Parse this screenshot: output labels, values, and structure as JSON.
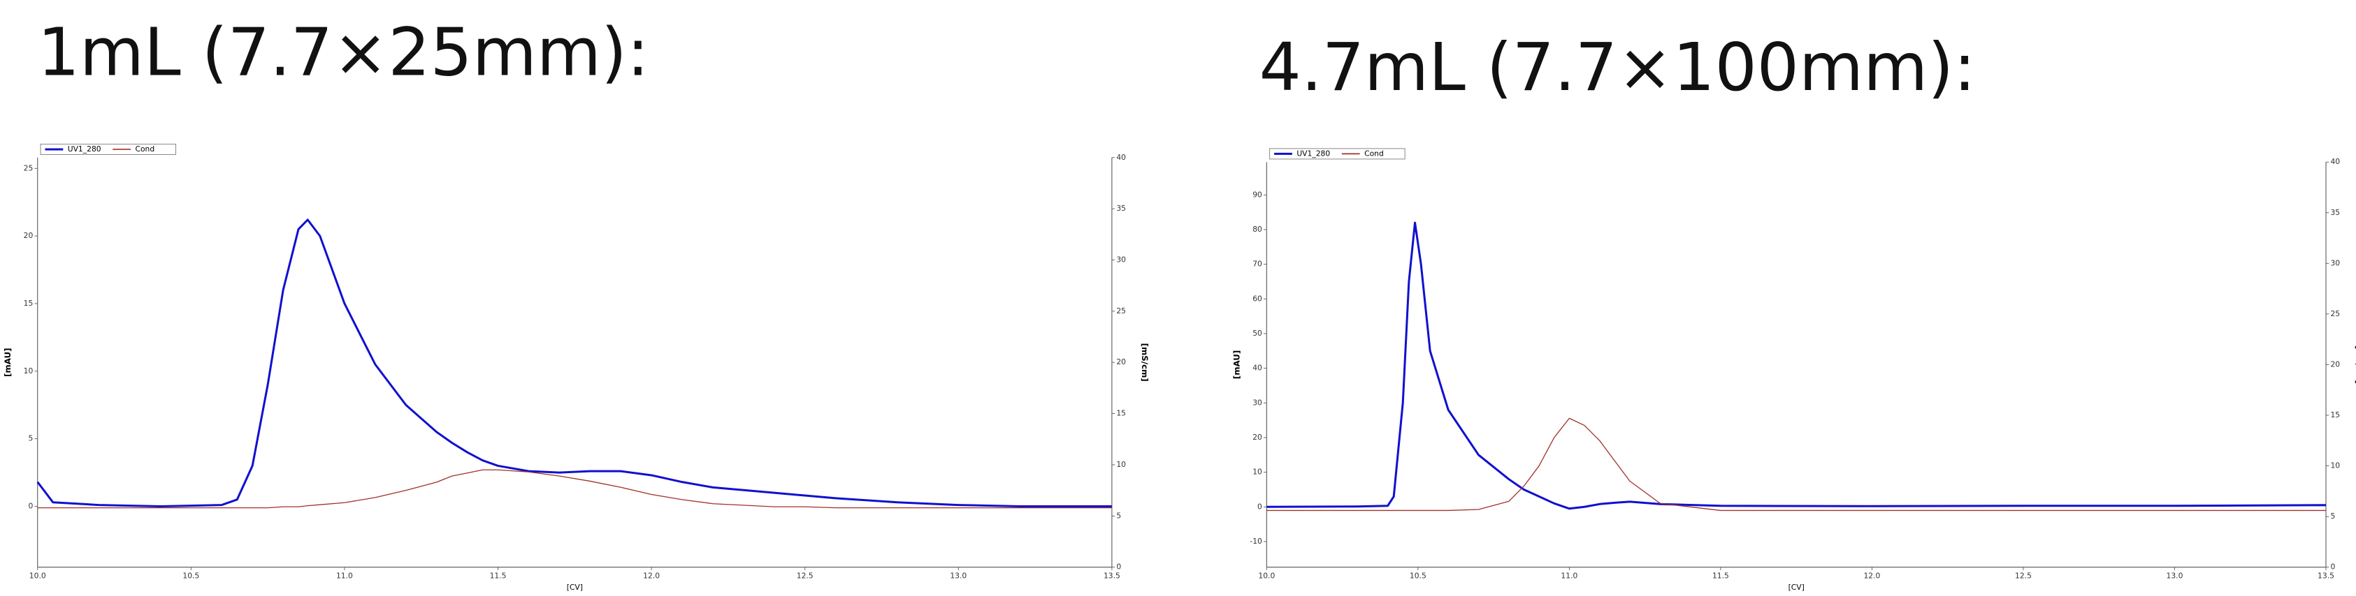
{
  "chart_data": [
    {
      "type": "line",
      "title": "1mL (7.7×25mm):",
      "x_label": "[CV]",
      "y_label": "[mAU]",
      "y2_label": "[mS/cm]",
      "x": [
        10.0,
        10.02,
        10.05,
        10.2,
        10.4,
        10.6,
        10.65,
        10.7,
        10.75,
        10.8,
        10.85,
        10.88,
        10.92,
        11.0,
        11.1,
        11.2,
        11.3,
        11.35,
        11.4,
        11.45,
        11.5,
        11.6,
        11.7,
        11.8,
        11.9,
        12.0,
        12.1,
        12.2,
        12.4,
        12.5,
        12.6,
        12.8,
        13.0,
        13.2,
        13.5
      ],
      "series": [
        {
          "name": "UV1_280",
          "color": "#1010d0",
          "values": [
            1.8,
            1.2,
            0.3,
            0.1,
            0.0,
            0.1,
            0.5,
            3,
            9,
            16,
            20.5,
            21.2,
            20,
            15,
            10.5,
            7.5,
            5.5,
            4.7,
            4.0,
            3.4,
            3.0,
            2.6,
            2.5,
            2.6,
            2.6,
            2.3,
            1.8,
            1.4,
            1.0,
            0.8,
            0.6,
            0.3,
            0.1,
            0.0,
            0.0
          ]
        },
        {
          "name": "Cond",
          "color": "#a0302a",
          "axis": "y2",
          "values": [
            5.8,
            5.8,
            5.8,
            5.8,
            5.8,
            5.8,
            5.8,
            5.8,
            5.8,
            5.9,
            5.9,
            6.0,
            6.1,
            6.3,
            6.8,
            7.5,
            8.3,
            8.9,
            9.2,
            9.5,
            9.5,
            9.3,
            8.9,
            8.4,
            7.8,
            7.1,
            6.6,
            6.2,
            5.9,
            5.9,
            5.8,
            5.8,
            5.8,
            5.8,
            5.8
          ]
        }
      ],
      "xlim": [
        10.0,
        13.5
      ],
      "xticks": [
        {
          "value": 10,
          "label": "10.0"
        },
        {
          "value": 10.5,
          "label": "10.5"
        },
        {
          "value": 11,
          "label": "11.0"
        },
        {
          "value": 11.5,
          "label": "11.5"
        },
        {
          "value": 12,
          "label": "12.0"
        },
        {
          "value": 12.5,
          "label": "12.5"
        },
        {
          "value": 13,
          "label": "13.0"
        },
        {
          "value": 13.5,
          "label": "13.5"
        }
      ],
      "ylim": [
        -4.5,
        25.8
      ],
      "yticks": [
        0,
        5,
        10,
        15,
        20,
        25
      ],
      "y2lim": [
        0,
        40
      ],
      "y2ticks": [
        0,
        5,
        10,
        15,
        20,
        25,
        30,
        35,
        40
      ],
      "legend": "top-left"
    },
    {
      "type": "line",
      "title": "4.7mL (7.7×100mm):",
      "x_label": "[CV]",
      "y_label": "[mAU]",
      "y2_label": "[mS/cm]",
      "x": [
        10.0,
        10.3,
        10.4,
        10.42,
        10.45,
        10.47,
        10.49,
        10.51,
        10.54,
        10.6,
        10.7,
        10.8,
        10.85,
        10.9,
        10.95,
        11.0,
        11.05,
        11.1,
        11.15,
        11.2,
        11.3,
        11.5,
        12.0,
        12.5,
        13.0,
        13.5
      ],
      "series": [
        {
          "name": "UV1_280",
          "color": "#1010d0",
          "values": [
            0.0,
            0.1,
            0.3,
            3,
            30,
            65,
            82,
            70,
            45,
            28,
            15,
            8,
            5,
            3,
            1,
            -0.5,
            0,
            0.8,
            1.2,
            1.5,
            0.8,
            0.3,
            0.2,
            0.3,
            0.3,
            0.5
          ]
        },
        {
          "name": "Cond",
          "color": "#a0302a",
          "axis": "y2",
          "values": [
            5.6,
            5.6,
            5.6,
            5.6,
            5.6,
            5.6,
            5.6,
            5.6,
            5.6,
            5.6,
            5.7,
            6.5,
            8,
            10,
            12.8,
            14.7,
            14,
            12.5,
            10.5,
            8.5,
            6.3,
            5.6,
            5.6,
            5.6,
            5.6,
            5.6
          ]
        }
      ],
      "xlim": [
        10.0,
        13.5
      ],
      "xticks": [
        {
          "value": 10,
          "label": "10.0"
        },
        {
          "value": 10.5,
          "label": "10.5"
        },
        {
          "value": 11,
          "label": "11.0"
        },
        {
          "value": 11.5,
          "label": "11.5"
        },
        {
          "value": 12,
          "label": "12.0"
        },
        {
          "value": 12.5,
          "label": "12.5"
        },
        {
          "value": 13,
          "label": "13.0"
        },
        {
          "value": 13.5,
          "label": "13.5"
        }
      ],
      "ylim": [
        -17.4,
        99.5
      ],
      "yticks": [
        -10,
        0,
        10,
        20,
        30,
        40,
        50,
        60,
        70,
        80,
        90
      ],
      "y2lim": [
        0,
        40
      ],
      "y2ticks": [
        0,
        5,
        10,
        15,
        20,
        25,
        30,
        35,
        40
      ],
      "legend": "top-left"
    }
  ]
}
